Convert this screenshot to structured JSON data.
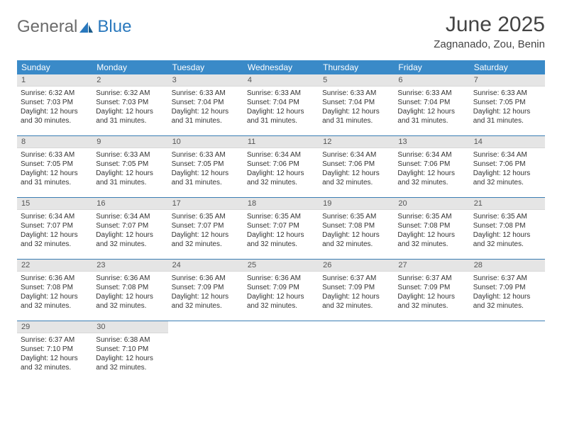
{
  "logo": {
    "general": "General",
    "blue": "Blue"
  },
  "title": "June 2025",
  "location": "Zagnanado, Zou, Benin",
  "weekdays": [
    "Sunday",
    "Monday",
    "Tuesday",
    "Wednesday",
    "Thursday",
    "Friday",
    "Saturday"
  ],
  "colors": {
    "header_bg": "#3a8ac8",
    "header_text": "#ffffff",
    "daynum_bg": "#e5e5e5",
    "row_border": "#3a7db3",
    "logo_gray": "#6b6b6b",
    "logo_blue": "#2978bd"
  },
  "days": [
    {
      "n": "1",
      "sr": "6:32 AM",
      "ss": "7:03 PM",
      "dl": "12 hours and 30 minutes."
    },
    {
      "n": "2",
      "sr": "6:32 AM",
      "ss": "7:03 PM",
      "dl": "12 hours and 31 minutes."
    },
    {
      "n": "3",
      "sr": "6:33 AM",
      "ss": "7:04 PM",
      "dl": "12 hours and 31 minutes."
    },
    {
      "n": "4",
      "sr": "6:33 AM",
      "ss": "7:04 PM",
      "dl": "12 hours and 31 minutes."
    },
    {
      "n": "5",
      "sr": "6:33 AM",
      "ss": "7:04 PM",
      "dl": "12 hours and 31 minutes."
    },
    {
      "n": "6",
      "sr": "6:33 AM",
      "ss": "7:04 PM",
      "dl": "12 hours and 31 minutes."
    },
    {
      "n": "7",
      "sr": "6:33 AM",
      "ss": "7:05 PM",
      "dl": "12 hours and 31 minutes."
    },
    {
      "n": "8",
      "sr": "6:33 AM",
      "ss": "7:05 PM",
      "dl": "12 hours and 31 minutes."
    },
    {
      "n": "9",
      "sr": "6:33 AM",
      "ss": "7:05 PM",
      "dl": "12 hours and 31 minutes."
    },
    {
      "n": "10",
      "sr": "6:33 AM",
      "ss": "7:05 PM",
      "dl": "12 hours and 31 minutes."
    },
    {
      "n": "11",
      "sr": "6:34 AM",
      "ss": "7:06 PM",
      "dl": "12 hours and 32 minutes."
    },
    {
      "n": "12",
      "sr": "6:34 AM",
      "ss": "7:06 PM",
      "dl": "12 hours and 32 minutes."
    },
    {
      "n": "13",
      "sr": "6:34 AM",
      "ss": "7:06 PM",
      "dl": "12 hours and 32 minutes."
    },
    {
      "n": "14",
      "sr": "6:34 AM",
      "ss": "7:06 PM",
      "dl": "12 hours and 32 minutes."
    },
    {
      "n": "15",
      "sr": "6:34 AM",
      "ss": "7:07 PM",
      "dl": "12 hours and 32 minutes."
    },
    {
      "n": "16",
      "sr": "6:34 AM",
      "ss": "7:07 PM",
      "dl": "12 hours and 32 minutes."
    },
    {
      "n": "17",
      "sr": "6:35 AM",
      "ss": "7:07 PM",
      "dl": "12 hours and 32 minutes."
    },
    {
      "n": "18",
      "sr": "6:35 AM",
      "ss": "7:07 PM",
      "dl": "12 hours and 32 minutes."
    },
    {
      "n": "19",
      "sr": "6:35 AM",
      "ss": "7:08 PM",
      "dl": "12 hours and 32 minutes."
    },
    {
      "n": "20",
      "sr": "6:35 AM",
      "ss": "7:08 PM",
      "dl": "12 hours and 32 minutes."
    },
    {
      "n": "21",
      "sr": "6:35 AM",
      "ss": "7:08 PM",
      "dl": "12 hours and 32 minutes."
    },
    {
      "n": "22",
      "sr": "6:36 AM",
      "ss": "7:08 PM",
      "dl": "12 hours and 32 minutes."
    },
    {
      "n": "23",
      "sr": "6:36 AM",
      "ss": "7:08 PM",
      "dl": "12 hours and 32 minutes."
    },
    {
      "n": "24",
      "sr": "6:36 AM",
      "ss": "7:09 PM",
      "dl": "12 hours and 32 minutes."
    },
    {
      "n": "25",
      "sr": "6:36 AM",
      "ss": "7:09 PM",
      "dl": "12 hours and 32 minutes."
    },
    {
      "n": "26",
      "sr": "6:37 AM",
      "ss": "7:09 PM",
      "dl": "12 hours and 32 minutes."
    },
    {
      "n": "27",
      "sr": "6:37 AM",
      "ss": "7:09 PM",
      "dl": "12 hours and 32 minutes."
    },
    {
      "n": "28",
      "sr": "6:37 AM",
      "ss": "7:09 PM",
      "dl": "12 hours and 32 minutes."
    },
    {
      "n": "29",
      "sr": "6:37 AM",
      "ss": "7:10 PM",
      "dl": "12 hours and 32 minutes."
    },
    {
      "n": "30",
      "sr": "6:38 AM",
      "ss": "7:10 PM",
      "dl": "12 hours and 32 minutes."
    }
  ],
  "labels": {
    "sunrise": "Sunrise: ",
    "sunset": "Sunset: ",
    "daylight": "Daylight: "
  }
}
